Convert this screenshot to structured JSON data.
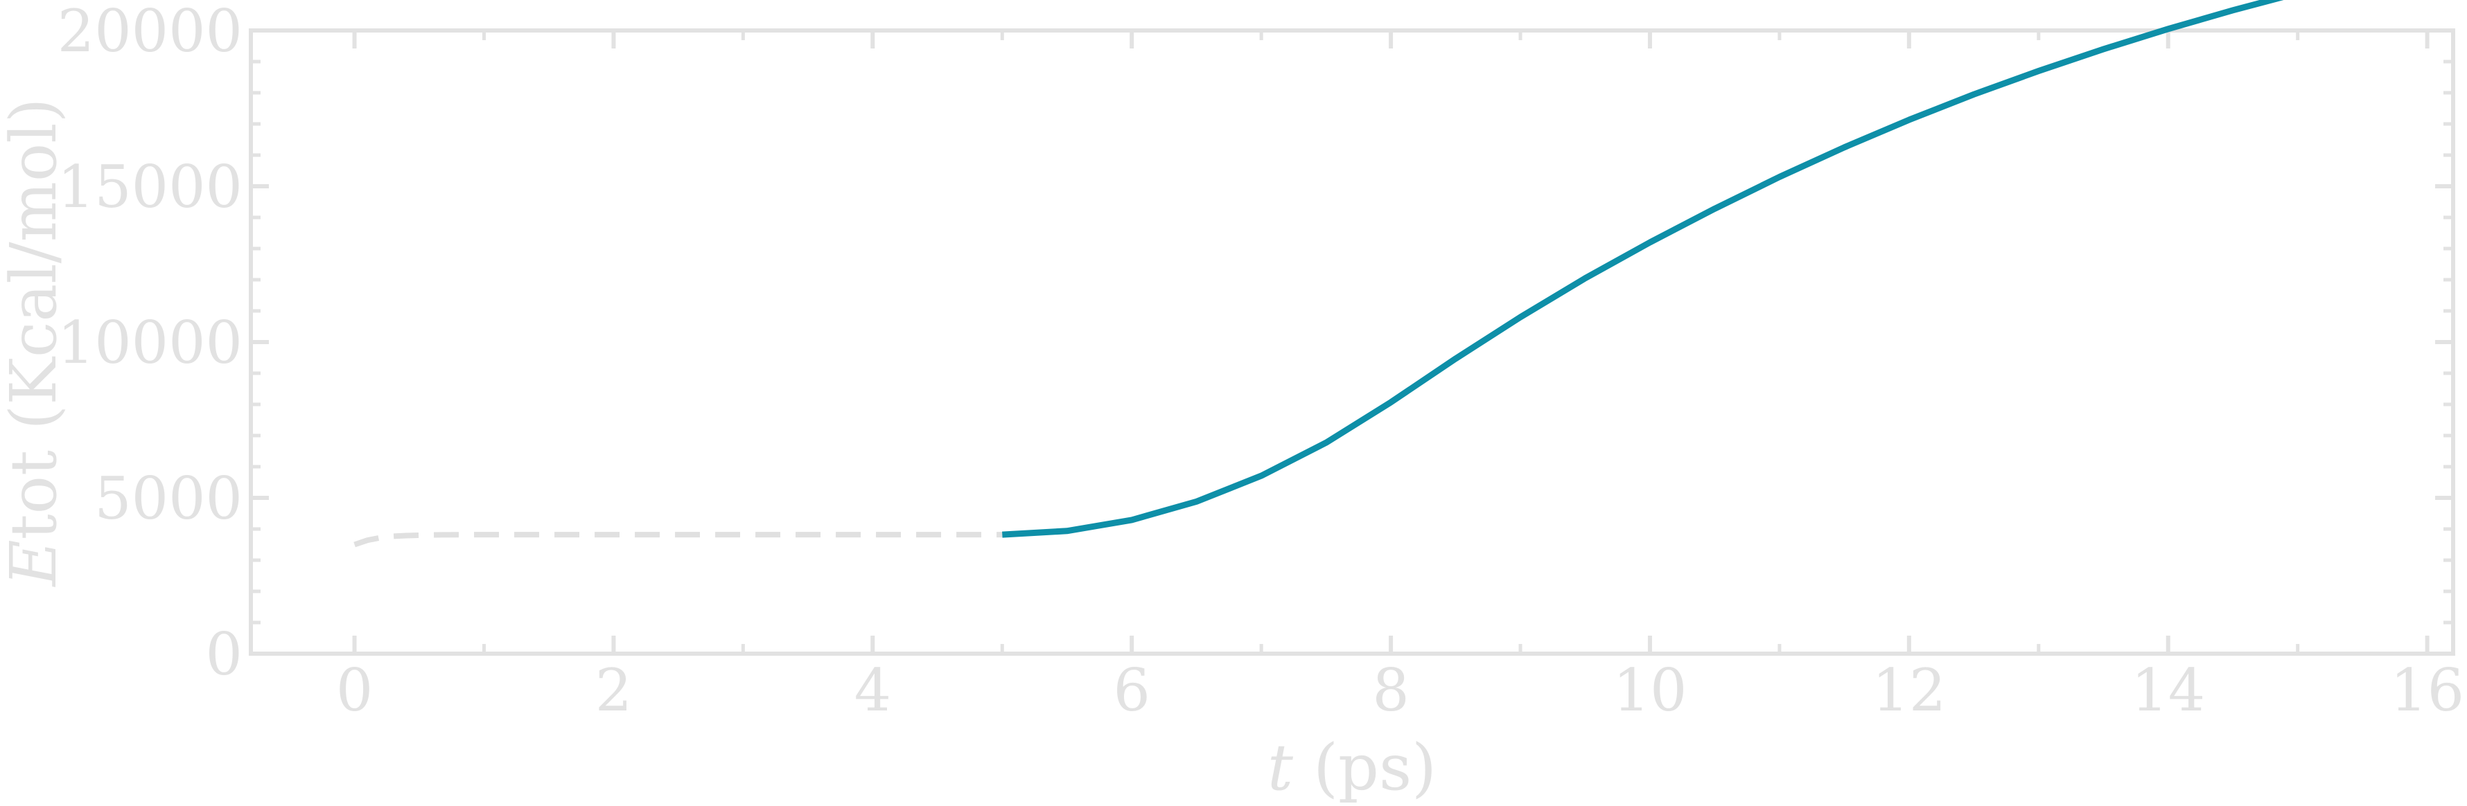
{
  "chart_data": {
    "type": "line",
    "xlabel": {
      "var": "t",
      "rest": " (ps)"
    },
    "ylabel": {
      "var": "E",
      "rest": "tot (Kcal/mol)"
    },
    "xlim": [
      -0.8,
      16.2
    ],
    "ylim": [
      0,
      20000
    ],
    "x_ticks": [
      0,
      2,
      4,
      6,
      8,
      10,
      12,
      14,
      16
    ],
    "x_tick_labels": [
      "0",
      "2",
      "4",
      "6",
      "8",
      "10",
      "12",
      "14",
      "16"
    ],
    "y_ticks": [
      0,
      5000,
      10000,
      15000,
      20000
    ],
    "y_tick_labels": [
      "0",
      "5000",
      "10000",
      "15000",
      "20000"
    ],
    "grid": false,
    "legend": false,
    "series": [
      {
        "style": "dashed",
        "color": "#e0e0e0",
        "x": [
          0,
          0.1,
          0.2,
          0.3,
          0.4,
          0.6,
          0.8,
          1.0,
          1.5,
          2.0,
          3.0,
          4.0,
          5.0
        ],
        "y": [
          3500,
          3640,
          3720,
          3770,
          3790,
          3810,
          3818,
          3820,
          3820,
          3820,
          3820,
          3820,
          3820
        ]
      },
      {
        "style": "solid",
        "color": "#0e8fa8",
        "x": [
          5,
          5.5,
          6,
          6.5,
          7,
          7.5,
          8,
          8.5,
          9,
          9.5,
          10,
          10.5,
          11,
          11.5,
          12,
          12.5,
          13,
          13.5,
          14,
          14.5,
          15
        ],
        "y": [
          3820,
          3938,
          4292,
          4882,
          5708,
          6770,
          8068,
          9470,
          10800,
          12050,
          13200,
          14280,
          15300,
          16250,
          17130,
          17950,
          18700,
          19400,
          20050,
          20650,
          21200
        ]
      }
    ]
  }
}
